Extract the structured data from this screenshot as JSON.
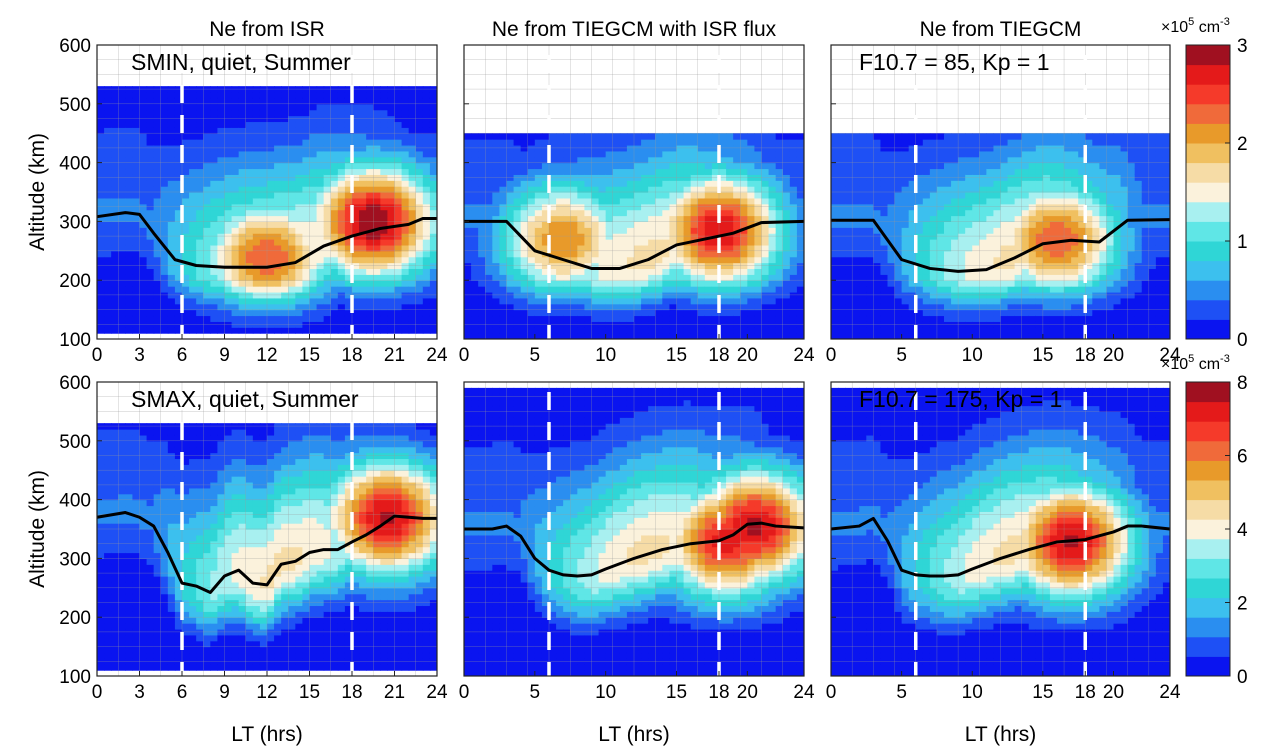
{
  "column_titles": [
    "Ne from ISR",
    "Ne from TIEGCM with ISR flux",
    "Ne from TIEGCM"
  ],
  "row_annotations": {
    "r0c0": "SMIN, quiet, Summer",
    "r0c2": "F10.7 = 85, Kp = 1",
    "r1c0": "SMAX, quiet, Summer",
    "r1c2": "F10.7 = 175, Kp = 1"
  },
  "x_axis": {
    "label": "LT (hrs)",
    "left_panel_ticks": [
      "0",
      "3",
      "6",
      "9",
      "12",
      "15",
      "18",
      "21",
      "24"
    ],
    "right_panel_ticks": [
      "0",
      "5",
      "10",
      "15",
      "18",
      "20",
      "24"
    ]
  },
  "y_axis": {
    "label": "Altitude (km)",
    "ticks": [
      "100",
      "200",
      "300",
      "400",
      "500",
      "600"
    ]
  },
  "colorbars": [
    {
      "unit_prefix": "×10",
      "unit_exp": "5",
      "unit_rest": " cm",
      "unit_exp2": "-3",
      "ticks": [
        "0",
        "1",
        "2",
        "3"
      ],
      "max": 3
    },
    {
      "unit_prefix": "×10",
      "unit_exp": "5",
      "unit_rest": " cm",
      "unit_exp2": "-3",
      "ticks": [
        "0",
        "2",
        "4",
        "6",
        "8"
      ],
      "max": 8
    }
  ],
  "colormap": [
    "#0a14f0",
    "#1e50f5",
    "#2a8ef0",
    "#3cc0ee",
    "#2fd6d6",
    "#5fe6e6",
    "#a8f0f0",
    "#fbf2dc",
    "#f6dca6",
    "#f0c060",
    "#e89a2a",
    "#f06a3a",
    "#f53a2a",
    "#e41a1a",
    "#a01020"
  ],
  "chart_data": [
    {
      "type": "heatmap",
      "title": "Ne from ISR",
      "annotation": "SMIN, quiet, Summer",
      "xlabel": "",
      "ylabel": "Altitude (km)",
      "xlim": [
        0,
        24
      ],
      "ylim": [
        100,
        600
      ],
      "value_max": 3,
      "data_top_km": 525,
      "data_bottom_km": 110,
      "peak_centers": [
        {
          "lt": 12,
          "alt": 240,
          "value": 2.4
        },
        {
          "lt": 19.5,
          "alt": 300,
          "value": 3.0
        }
      ],
      "vertical_dashed_lines_lt": [
        6,
        18
      ],
      "hmF2_line": {
        "lt": [
          0,
          2,
          3,
          4,
          5.5,
          7,
          9,
          12,
          14,
          16,
          18,
          20,
          22,
          23,
          24
        ],
        "alt": [
          308,
          315,
          312,
          280,
          235,
          225,
          222,
          222,
          230,
          258,
          275,
          288,
          295,
          305,
          305
        ]
      }
    },
    {
      "type": "heatmap",
      "title": "Ne from TIEGCM with ISR flux",
      "annotation": "",
      "xlabel": "",
      "ylabel": "",
      "xlim": [
        0,
        24
      ],
      "ylim": [
        100,
        600
      ],
      "value_max": 3,
      "data_top_km": 450,
      "data_bottom_km": 100,
      "peak_centers": [
        {
          "lt": 7,
          "alt": 270,
          "value": 2.2
        },
        {
          "lt": 18,
          "alt": 285,
          "value": 2.8
        }
      ],
      "vertical_dashed_lines_lt": [
        6,
        18
      ],
      "hmF2_line": {
        "lt": [
          0,
          3,
          5,
          7,
          9,
          11,
          13,
          15,
          17,
          19,
          21,
          24
        ],
        "alt": [
          300,
          300,
          250,
          235,
          220,
          220,
          235,
          260,
          270,
          280,
          298,
          300
        ]
      }
    },
    {
      "type": "heatmap",
      "title": "Ne from TIEGCM",
      "annotation": "F10.7 = 85, Kp = 1",
      "xlabel": "",
      "ylabel": "",
      "xlim": [
        0,
        24
      ],
      "ylim": [
        100,
        600
      ],
      "value_max": 3,
      "data_top_km": 450,
      "data_bottom_km": 100,
      "peak_centers": [
        {
          "lt": 16,
          "alt": 270,
          "value": 2.4
        }
      ],
      "vertical_dashed_lines_lt": [
        6,
        18
      ],
      "hmF2_line": {
        "lt": [
          0,
          3,
          5,
          7,
          9,
          11,
          13,
          15,
          17,
          19,
          21,
          24
        ],
        "alt": [
          302,
          302,
          235,
          220,
          215,
          218,
          238,
          262,
          268,
          265,
          302,
          303
        ]
      }
    },
    {
      "type": "heatmap",
      "title": "",
      "annotation": "SMAX, quiet, Summer",
      "xlabel": "LT (hrs)",
      "ylabel": "Altitude (km)",
      "xlim": [
        0,
        24
      ],
      "ylim": [
        100,
        600
      ],
      "value_max": 8,
      "data_top_km": 525,
      "data_bottom_km": 110,
      "peak_centers": [
        {
          "lt": 20.5,
          "alt": 370,
          "value": 7.6
        }
      ],
      "vertical_dashed_lines_lt": [
        6,
        18
      ],
      "hmF2_line": {
        "lt": [
          0,
          2,
          3,
          4,
          5,
          6,
          7,
          8,
          9,
          10,
          11,
          12,
          13,
          14,
          15,
          16,
          17,
          18,
          19,
          20,
          21,
          22,
          23,
          24
        ],
        "alt": [
          370,
          378,
          370,
          355,
          310,
          258,
          253,
          242,
          270,
          280,
          258,
          255,
          290,
          295,
          310,
          315,
          315,
          328,
          340,
          355,
          372,
          370,
          368,
          368
        ]
      }
    },
    {
      "type": "heatmap",
      "title": "",
      "annotation": "",
      "xlabel": "LT (hrs)",
      "ylabel": "",
      "xlim": [
        0,
        24
      ],
      "ylim": [
        100,
        600
      ],
      "value_max": 8,
      "data_top_km": 590,
      "data_bottom_km": 100,
      "peak_centers": [
        {
          "lt": 18.5,
          "alt": 330,
          "value": 7.2
        },
        {
          "lt": 20.5,
          "alt": 355,
          "value": 7.6
        }
      ],
      "vertical_dashed_lines_lt": [
        6,
        18
      ],
      "hmF2_line": {
        "lt": [
          0,
          2,
          3,
          4,
          5,
          6,
          7,
          8,
          9,
          10,
          12,
          14,
          16,
          18,
          19,
          20,
          21,
          22,
          24
        ],
        "alt": [
          350,
          350,
          355,
          338,
          300,
          280,
          272,
          270,
          272,
          282,
          300,
          315,
          325,
          330,
          340,
          358,
          360,
          355,
          352
        ]
      }
    },
    {
      "type": "heatmap",
      "title": "",
      "annotation": "F10.7 = 175, Kp = 1",
      "xlabel": "LT (hrs)",
      "ylabel": "",
      "xlim": [
        0,
        24
      ],
      "ylim": [
        100,
        600
      ],
      "value_max": 8,
      "data_top_km": 590,
      "data_bottom_km": 100,
      "peak_centers": [
        {
          "lt": 17,
          "alt": 330,
          "value": 7.6
        }
      ],
      "vertical_dashed_lines_lt": [
        6,
        18
      ],
      "hmF2_line": {
        "lt": [
          0,
          2,
          3,
          4,
          5,
          6,
          7,
          8,
          9,
          10,
          12,
          14,
          16,
          18,
          20,
          21,
          22,
          24
        ],
        "alt": [
          350,
          355,
          368,
          330,
          280,
          272,
          270,
          270,
          272,
          282,
          300,
          315,
          328,
          332,
          345,
          355,
          355,
          350
        ]
      }
    }
  ]
}
